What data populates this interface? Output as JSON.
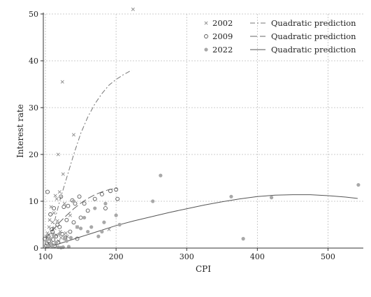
{
  "chart_data": {
    "type": "scatter",
    "title": "",
    "xlabel": "CPI",
    "ylabel": "Interest rate",
    "xlim": [
      97,
      550
    ],
    "ylim": [
      0,
      50
    ],
    "xticks": [
      100,
      200,
      300,
      400,
      500
    ],
    "yticks": [
      0,
      10,
      20,
      30,
      40,
      50
    ],
    "grid": true,
    "legend_position": "top-right",
    "series": [
      {
        "name": "2002",
        "marker": "x",
        "color": "#8a8a8a",
        "points": [
          [
            101,
            2.5
          ],
          [
            102,
            1.5
          ],
          [
            103,
            3.2
          ],
          [
            104,
            1.0
          ],
          [
            105,
            4.5
          ],
          [
            106,
            6.0
          ],
          [
            107,
            2.0
          ],
          [
            108,
            8.8
          ],
          [
            109,
            1.2
          ],
          [
            110,
            5.5
          ],
          [
            111,
            3.0
          ],
          [
            112,
            7.5
          ],
          [
            113,
            4.2
          ],
          [
            114,
            11.2
          ],
          [
            115,
            2.8
          ],
          [
            116,
            10.5
          ],
          [
            117,
            5.8
          ],
          [
            118,
            20.0
          ],
          [
            119,
            1.5
          ],
          [
            120,
            12.0
          ],
          [
            121,
            3.5
          ],
          [
            122,
            2.2
          ],
          [
            124,
            35.5
          ],
          [
            125,
            15.8
          ],
          [
            127,
            9.5
          ],
          [
            129,
            3.2
          ],
          [
            131,
            2.5
          ],
          [
            135,
            7.0
          ],
          [
            140,
            24.2
          ],
          [
            145,
            4.5
          ],
          [
            190,
            4.0
          ],
          [
            224,
            51.0
          ]
        ]
      },
      {
        "name": "2009",
        "marker": "circle-hollow",
        "color": "#555555",
        "points": [
          [
            99,
            2.0
          ],
          [
            101,
            0.5
          ],
          [
            102,
            1.0
          ],
          [
            103,
            12.0
          ],
          [
            104,
            2.5
          ],
          [
            105,
            1.5
          ],
          [
            107,
            7.2
          ],
          [
            108,
            0.8
          ],
          [
            109,
            4.0
          ],
          [
            110,
            3.5
          ],
          [
            111,
            1.8
          ],
          [
            112,
            8.5
          ],
          [
            113,
            0.5
          ],
          [
            115,
            2.5
          ],
          [
            117,
            5.0
          ],
          [
            118,
            1.2
          ],
          [
            120,
            4.5
          ],
          [
            122,
            11.0
          ],
          [
            124,
            3.0
          ],
          [
            126,
            8.8
          ],
          [
            128,
            2.2
          ],
          [
            130,
            6.0
          ],
          [
            132,
            9.0
          ],
          [
            135,
            3.5
          ],
          [
            138,
            10.2
          ],
          [
            140,
            5.5
          ],
          [
            142,
            9.5
          ],
          [
            145,
            2.0
          ],
          [
            148,
            11.0
          ],
          [
            150,
            6.5
          ],
          [
            155,
            9.5
          ],
          [
            160,
            8.0
          ],
          [
            170,
            10.5
          ],
          [
            180,
            11.5
          ],
          [
            185,
            8.5
          ],
          [
            192,
            12.2
          ],
          [
            200,
            12.5
          ],
          [
            202,
            10.5
          ]
        ]
      },
      {
        "name": "2022",
        "marker": "circle-filled",
        "color": "#a8a8a8",
        "points": [
          [
            101,
            1.5
          ],
          [
            103,
            0.5
          ],
          [
            105,
            2.0
          ],
          [
            108,
            1.0
          ],
          [
            110,
            0.3
          ],
          [
            112,
            2.5
          ],
          [
            115,
            1.2
          ],
          [
            118,
            0.2
          ],
          [
            120,
            3.0
          ],
          [
            122,
            0.1
          ],
          [
            125,
            0.2
          ],
          [
            127,
            2.0
          ],
          [
            130,
            1.5
          ],
          [
            133,
            0.3
          ],
          [
            136,
            2.2
          ],
          [
            140,
            10.0
          ],
          [
            145,
            4.5
          ],
          [
            150,
            4.2
          ],
          [
            155,
            6.5
          ],
          [
            160,
            3.5
          ],
          [
            165,
            4.5
          ],
          [
            170,
            8.5
          ],
          [
            175,
            2.5
          ],
          [
            180,
            3.5
          ],
          [
            183,
            5.5
          ],
          [
            185,
            9.5
          ],
          [
            200,
            7.0
          ],
          [
            205,
            5.0
          ],
          [
            252,
            10.0
          ],
          [
            263,
            15.5
          ],
          [
            363,
            11.0
          ],
          [
            380,
            2.0
          ],
          [
            420,
            10.8
          ],
          [
            543,
            13.5
          ]
        ]
      }
    ],
    "fits": [
      {
        "name": "Quadratic prediction",
        "series": "2002",
        "style": "dash-dot",
        "color": "#777777",
        "points": [
          [
            105,
            1.5
          ],
          [
            110,
            4.0
          ],
          [
            115,
            7.0
          ],
          [
            120,
            10.0
          ],
          [
            130,
            15.0
          ],
          [
            140,
            20.0
          ],
          [
            150,
            24.5
          ],
          [
            160,
            28.0
          ],
          [
            170,
            30.8
          ],
          [
            180,
            33.0
          ],
          [
            190,
            34.8
          ],
          [
            200,
            36.0
          ],
          [
            210,
            37.0
          ],
          [
            222,
            38.0
          ]
        ]
      },
      {
        "name": "Quadratic prediction",
        "series": "2009",
        "style": "long-dash",
        "color": "#666666",
        "points": [
          [
            101,
            2.0
          ],
          [
            110,
            3.8
          ],
          [
            120,
            5.5
          ],
          [
            130,
            7.0
          ],
          [
            140,
            8.4
          ],
          [
            150,
            9.6
          ],
          [
            160,
            10.6
          ],
          [
            170,
            11.4
          ],
          [
            180,
            12.0
          ],
          [
            190,
            12.5
          ],
          [
            202,
            12.8
          ]
        ]
      },
      {
        "name": "Quadratic prediction",
        "series": "2022",
        "style": "solid",
        "color": "#555555",
        "points": [
          [
            101,
            0.0
          ],
          [
            125,
            1.2
          ],
          [
            150,
            2.4
          ],
          [
            175,
            3.6
          ],
          [
            200,
            4.8
          ],
          [
            225,
            5.8
          ],
          [
            250,
            6.7
          ],
          [
            275,
            7.6
          ],
          [
            300,
            8.4
          ],
          [
            325,
            9.2
          ],
          [
            350,
            9.9
          ],
          [
            375,
            10.5
          ],
          [
            400,
            11.0
          ],
          [
            425,
            11.3
          ],
          [
            450,
            11.4
          ],
          [
            475,
            11.4
          ],
          [
            500,
            11.2
          ],
          [
            525,
            10.9
          ],
          [
            542,
            10.6
          ]
        ]
      }
    ],
    "legend": [
      {
        "marker_label": "2002",
        "line_label": "Quadratic prediction"
      },
      {
        "marker_label": "2009",
        "line_label": "Quadratic prediction"
      },
      {
        "marker_label": "2022",
        "line_label": "Quadratic prediction"
      }
    ]
  }
}
